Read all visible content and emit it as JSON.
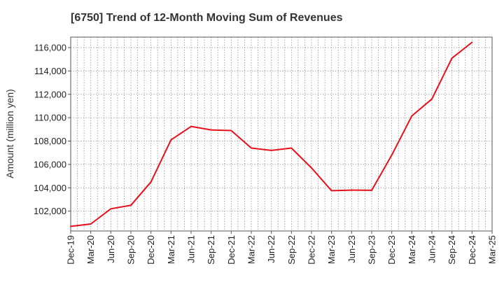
{
  "chart_data": {
    "type": "line",
    "title": "[6750]  Trend of 12-Month Moving Sum of Revenues",
    "xlabel": "",
    "ylabel": "Amount (million yen)",
    "categories": [
      "Dec-19",
      "Mar-20",
      "Jun-20",
      "Sep-20",
      "Dec-20",
      "Mar-21",
      "Jun-21",
      "Sep-21",
      "Dec-21",
      "Mar-22",
      "Jun-22",
      "Sep-22",
      "Dec-22",
      "Mar-23",
      "Jun-23",
      "Sep-23",
      "Dec-23",
      "Mar-24",
      "Jun-24",
      "Sep-24",
      "Dec-24",
      "Mar-25"
    ],
    "series": [
      {
        "color": "#e8101a",
        "values": [
          100700,
          100900,
          102200,
          102500,
          104500,
          108100,
          109250,
          108950,
          108900,
          107400,
          107200,
          107400,
          105700,
          103750,
          103800,
          103780,
          106800,
          110150,
          111600,
          115100,
          116450,
          null
        ]
      }
    ],
    "ylim": [
      100300,
      116900
    ],
    "yticks": [
      102000,
      104000,
      106000,
      108000,
      110000,
      112000,
      114000,
      116000
    ],
    "ytick_labels": [
      "102,000",
      "104,000",
      "106,000",
      "108,000",
      "110,000",
      "112,000",
      "114,000",
      "116,000"
    ],
    "grid": true,
    "grid_style": "dotted",
    "legend": "none"
  }
}
